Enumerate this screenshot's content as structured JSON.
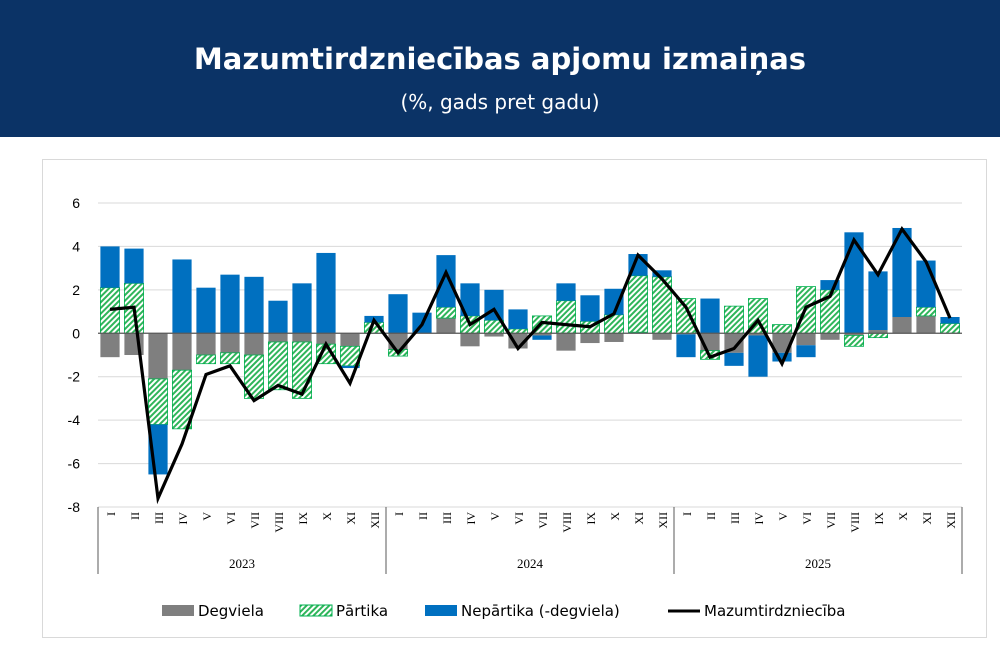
{
  "header": {
    "title": "Mazumtirdzniecības apjomu izmaiņas",
    "subtitle": "(%, gads pret gadu)"
  },
  "chart_data": {
    "type": "bar",
    "stacked": true,
    "title": "Mazumtirdzniecības apjomu izmaiņas",
    "subtitle": "(%, gads pret gadu)",
    "ylim": [
      -8,
      6
    ],
    "yticks": [
      -8,
      -6,
      -4,
      -2,
      0,
      2,
      4,
      6
    ],
    "grid": true,
    "legend_position": "bottom",
    "months": [
      "I",
      "II",
      "III",
      "IV",
      "V",
      "VI",
      "VII",
      "VIII",
      "IX",
      "X",
      "XI",
      "XII"
    ],
    "years": [
      "2023",
      "2024",
      "2025"
    ],
    "series": [
      {
        "name": "Degviela",
        "kind": "bar",
        "color": "#7f7f7f",
        "values": [
          -1.1,
          -1.0,
          -2.1,
          -1.7,
          -1.0,
          -0.9,
          -1.0,
          -0.4,
          -0.4,
          -0.5,
          -0.6,
          0,
          -0.75,
          0,
          0.7,
          -0.6,
          -0.15,
          -0.7,
          -0.1,
          -0.8,
          -0.45,
          -0.4,
          0.05,
          -0.3,
          -0.05,
          -0.8,
          -0.9,
          -0.1,
          -0.9,
          -0.55,
          -0.3,
          -0.1,
          0.15,
          0.75,
          0.8,
          0
        ]
      },
      {
        "name": "Pārtika",
        "kind": "hatched-bar",
        "color": "#00b050",
        "values": [
          2.1,
          2.3,
          -2.1,
          -2.7,
          -0.4,
          -0.5,
          -2.0,
          -2.2,
          -2.6,
          -0.9,
          -0.9,
          0.5,
          -0.3,
          0,
          0.5,
          0.8,
          0.6,
          0.2,
          0.8,
          1.5,
          0.55,
          0.85,
          2.6,
          2.6,
          1.6,
          -0.4,
          1.25,
          1.6,
          0.4,
          2.15,
          2.0,
          -0.5,
          -0.2,
          0,
          0.4,
          0.45
        ]
      },
      {
        "name": "Nepārtika (-degviela)",
        "kind": "bar",
        "color": "#0070c0",
        "values": [
          1.9,
          1.6,
          -2.3,
          3.4,
          2.1,
          2.7,
          2.6,
          1.5,
          2.3,
          3.7,
          -0.1,
          0.3,
          1.8,
          0.95,
          2.4,
          1.5,
          1.4,
          0.9,
          -0.2,
          0.8,
          1.2,
          1.2,
          1.0,
          0.3,
          -1.05,
          1.6,
          -0.6,
          -1.9,
          -0.4,
          -0.55,
          0.45,
          4.65,
          2.7,
          4.1,
          2.15,
          0.3
        ]
      },
      {
        "name": "Mazumtirdzniecība",
        "kind": "line",
        "color": "#000000",
        "values": [
          1.1,
          1.2,
          -7.6,
          -5.1,
          -1.9,
          -1.5,
          -3.1,
          -2.4,
          -2.8,
          -0.5,
          -2.3,
          0.6,
          -0.9,
          0.4,
          2.8,
          0.4,
          1.1,
          -0.7,
          0.5,
          0.4,
          0.3,
          0.9,
          3.6,
          2.5,
          1.2,
          -1.1,
          -0.7,
          0.6,
          -1.4,
          1.2,
          1.7,
          4.3,
          2.7,
          4.8,
          3.3,
          0.7
        ]
      }
    ]
  }
}
